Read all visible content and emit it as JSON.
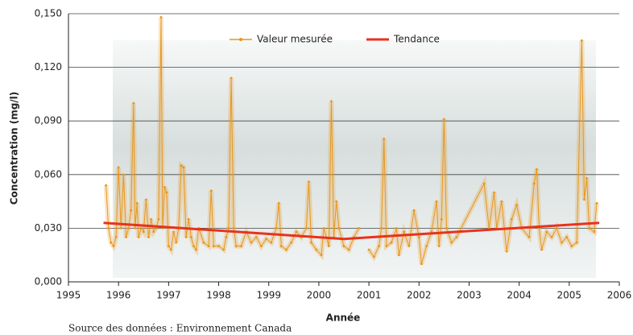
{
  "chart_data": {
    "type": "line",
    "x_label": "Année",
    "y_label": "Concentration (mg/l)",
    "source": "Source des données : Environnement Canada",
    "xlim": [
      1995,
      2006
    ],
    "xticks": [
      1995,
      1996,
      1997,
      1998,
      1999,
      2000,
      2001,
      2002,
      2003,
      2004,
      2005,
      2006
    ],
    "ylim": [
      0,
      0.15
    ],
    "yticks": [
      {
        "value": 0,
        "label": "0,000"
      },
      {
        "value": 0.03,
        "label": "0,030"
      },
      {
        "value": 0.06,
        "label": "0,060"
      },
      {
        "value": 0.09,
        "label": "0,090"
      },
      {
        "value": 0.12,
        "label": "0,120"
      },
      {
        "value": 0.15,
        "label": "0,150"
      }
    ],
    "grid": true,
    "legend": "top",
    "series": [
      {
        "name": "Valeur mesurée",
        "color": "#e8961e",
        "markers": true,
        "x": [
          1995.75,
          1995.8,
          1995.85,
          1995.9,
          1995.95,
          1996.0,
          1996.05,
          1996.1,
          1996.15,
          1996.2,
          1996.25,
          1996.3,
          1996.33,
          1996.37,
          1996.4,
          1996.45,
          1996.5,
          1996.55,
          1996.6,
          1996.65,
          1996.7,
          1996.75,
          1996.8,
          1996.85,
          1996.88,
          1996.92,
          1996.96,
          1997.0,
          1997.05,
          1997.1,
          1997.15,
          1997.2,
          1997.25,
          1997.3,
          1997.35,
          1997.4,
          1997.45,
          1997.5,
          1997.55,
          1997.6,
          1997.7,
          1997.8,
          1997.85,
          1997.9,
          1998.0,
          1998.1,
          1998.15,
          1998.2,
          1998.25,
          1998.3,
          1998.35,
          1998.45,
          1998.55,
          1998.65,
          1998.75,
          1998.85,
          1998.95,
          1999.05,
          1999.15,
          1999.2,
          1999.25,
          1999.35,
          1999.45,
          1999.55,
          1999.65,
          1999.75,
          1999.8,
          1999.85,
          1999.95,
          2000.05,
          2000.1,
          2000.2,
          2000.25,
          2000.3,
          2000.35,
          2000.4,
          2000.5,
          2000.6,
          2000.7,
          2000.8,
          2000.9,
          2001.0,
          2001.1,
          2001.2,
          2001.25,
          2001.3,
          2001.35,
          2001.45,
          2001.55,
          2001.6,
          2001.7,
          2001.8,
          2001.9,
          2002.0,
          2002.05,
          2002.15,
          2002.25,
          2002.35,
          2002.4,
          2002.45,
          2002.5,
          2002.55,
          2002.65,
          2002.75,
          2003.3,
          2003.4,
          2003.5,
          2003.55,
          2003.65,
          2003.75,
          2003.85,
          2003.95,
          2004.05,
          2004.2,
          2004.3,
          2004.35,
          2004.4,
          2004.45,
          2004.55,
          2004.65,
          2004.75,
          2004.85,
          2004.95,
          2005.05,
          2005.15,
          2005.25,
          2005.3,
          2005.35,
          2005.4,
          2005.5,
          2005.55
        ],
        "values": [
          0.054,
          0.03,
          0.022,
          0.02,
          0.025,
          0.064,
          0.03,
          0.06,
          0.025,
          0.03,
          0.04,
          0.1,
          0.03,
          0.044,
          0.025,
          0.03,
          0.028,
          0.046,
          0.025,
          0.035,
          0.028,
          0.03,
          0.035,
          0.148,
          0.03,
          0.053,
          0.05,
          0.02,
          0.018,
          0.028,
          0.022,
          0.03,
          0.065,
          0.064,
          0.025,
          0.035,
          0.025,
          0.02,
          0.018,
          0.03,
          0.022,
          0.02,
          0.051,
          0.02,
          0.02,
          0.018,
          0.025,
          0.03,
          0.114,
          0.03,
          0.02,
          0.02,
          0.028,
          0.022,
          0.025,
          0.02,
          0.024,
          0.022,
          0.03,
          0.044,
          0.02,
          0.018,
          0.022,
          0.028,
          0.025,
          0.03,
          0.056,
          0.022,
          0.018,
          0.015,
          0.03,
          0.02,
          0.101,
          0.025,
          0.045,
          0.03,
          0.02,
          0.018,
          0.025,
          0.03,
          null,
          0.018,
          0.014,
          0.02,
          0.03,
          0.08,
          0.02,
          0.022,
          0.03,
          0.015,
          0.028,
          0.02,
          0.04,
          0.025,
          0.01,
          0.02,
          0.028,
          0.045,
          0.02,
          0.035,
          0.091,
          0.03,
          0.022,
          0.025,
          0.055,
          0.03,
          0.05,
          0.03,
          0.045,
          0.017,
          0.035,
          0.043,
          0.03,
          0.025,
          0.055,
          0.063,
          0.03,
          0.018,
          0.028,
          0.025,
          0.03,
          0.022,
          0.025,
          0.02,
          0.022,
          0.135,
          0.046,
          0.058,
          0.03,
          0.028,
          0.044
        ]
      },
      {
        "name": "Tendance",
        "color": "#e8321e",
        "markers": false,
        "x": [
          1995.7,
          2000.5,
          2005.6
        ],
        "values": [
          0.033,
          0.024,
          0.033
        ]
      }
    ]
  }
}
